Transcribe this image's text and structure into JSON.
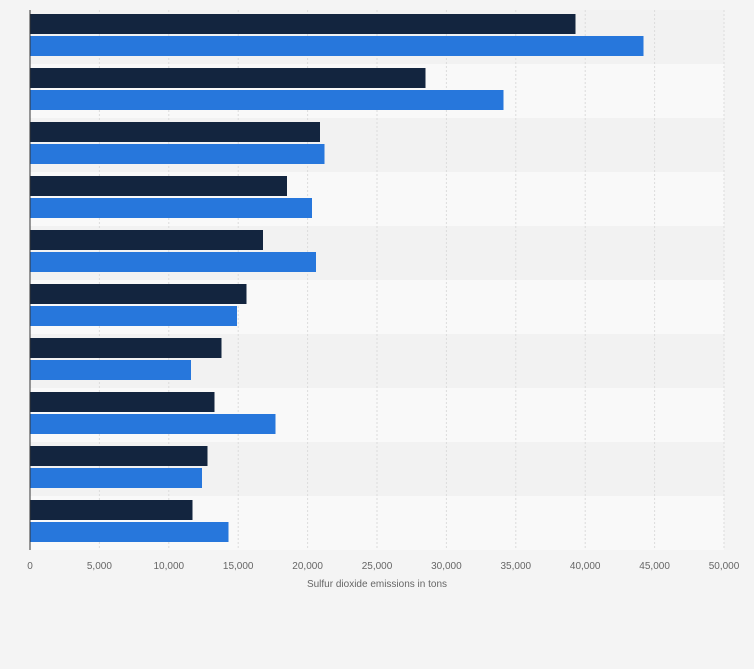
{
  "chart_data": {
    "type": "bar",
    "orientation": "horizontal",
    "title": "",
    "xlabel": "Sulfur dioxide emissions in tons",
    "ylabel": "",
    "xlim": [
      0,
      50000
    ],
    "x_ticks": [
      "0",
      "5,000",
      "10,000",
      "15,000",
      "20,000",
      "25,000",
      "30,000",
      "35,000",
      "40,000",
      "45,000",
      "50,000"
    ],
    "grid": true,
    "categories": [
      "",
      "",
      "",
      "",
      "",
      "",
      "",
      "",
      "",
      ""
    ],
    "series": [
      {
        "color": "#13253f",
        "values": [
          39300,
          28500,
          20900,
          18500,
          16800,
          15600,
          13800,
          13300,
          12800,
          11700
        ]
      },
      {
        "color": "#2777dc",
        "values": [
          44200,
          34100,
          21200,
          20300,
          20600,
          14900,
          11600,
          17700,
          12400,
          14300
        ]
      }
    ]
  }
}
